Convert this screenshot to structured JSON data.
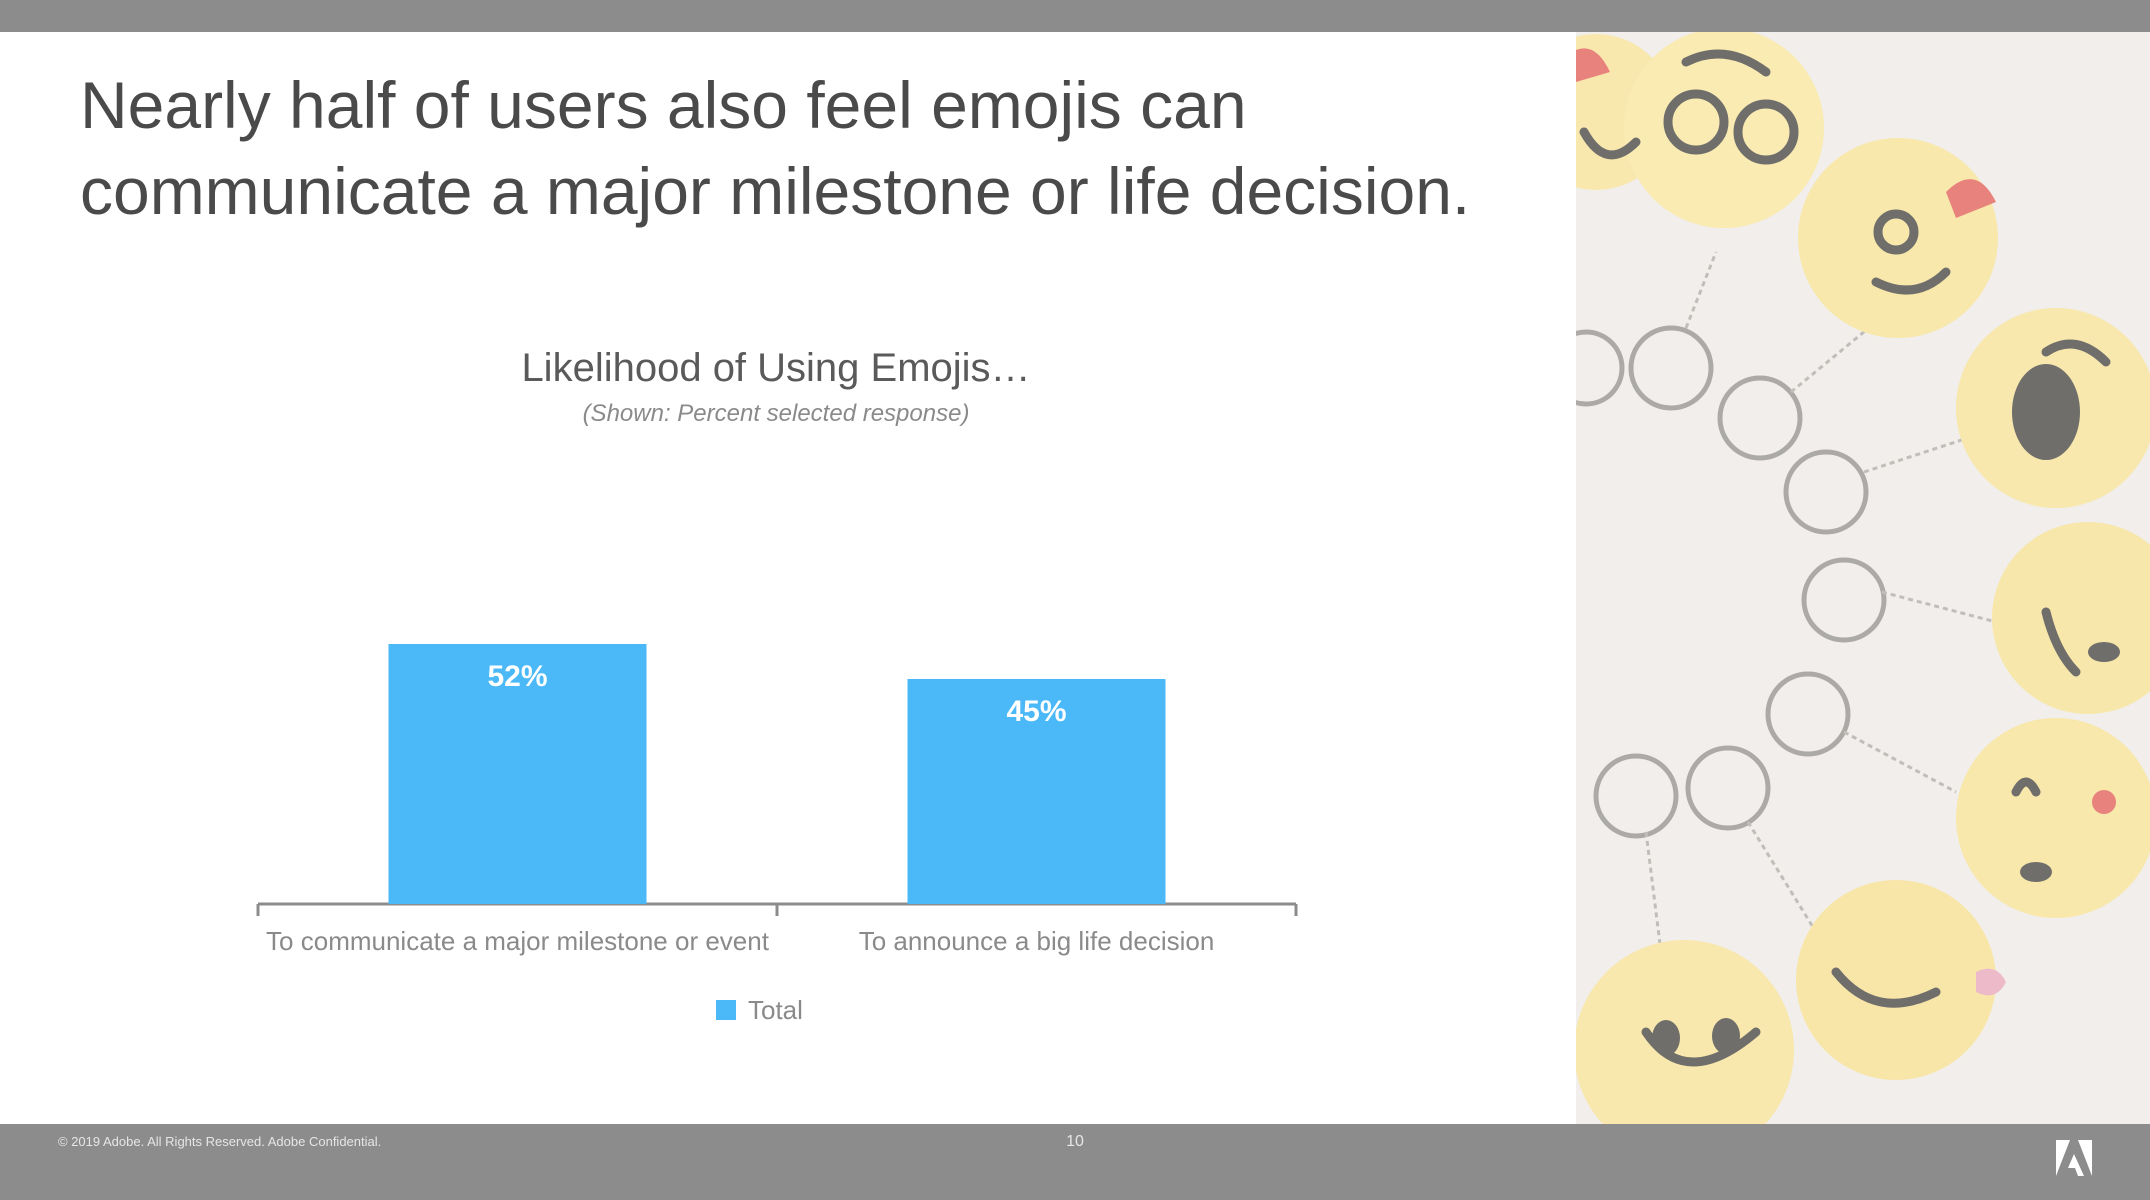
{
  "slide": {
    "headline_line1": "Nearly half of users also feel emojis can",
    "headline_line2": "communicate a major milestone or life decision.",
    "footer": {
      "copyright": "© 2019 Adobe. All Rights Reserved. Adobe Confidential.",
      "page_number": "10"
    },
    "photo_description_icon": "emoji-keychains-photo"
  },
  "colors": {
    "bar": "#4bb8f8",
    "bars_frame": "#8c8c8c",
    "headline": "#4a4a4a"
  },
  "chart_data": {
    "type": "bar",
    "title": "Likelihood of Using Emojis…",
    "subtitle": "(Shown: Percent selected response)",
    "categories": [
      "To communicate a major milestone or event",
      "To announce a big life decision"
    ],
    "series": [
      {
        "name": "Total",
        "values": [
          52,
          45
        ],
        "labels": [
          "52%",
          "45%"
        ]
      }
    ],
    "ylim": [
      0,
      100
    ],
    "grid": false,
    "legend": "bottom",
    "xlabel": "",
    "ylabel": ""
  }
}
